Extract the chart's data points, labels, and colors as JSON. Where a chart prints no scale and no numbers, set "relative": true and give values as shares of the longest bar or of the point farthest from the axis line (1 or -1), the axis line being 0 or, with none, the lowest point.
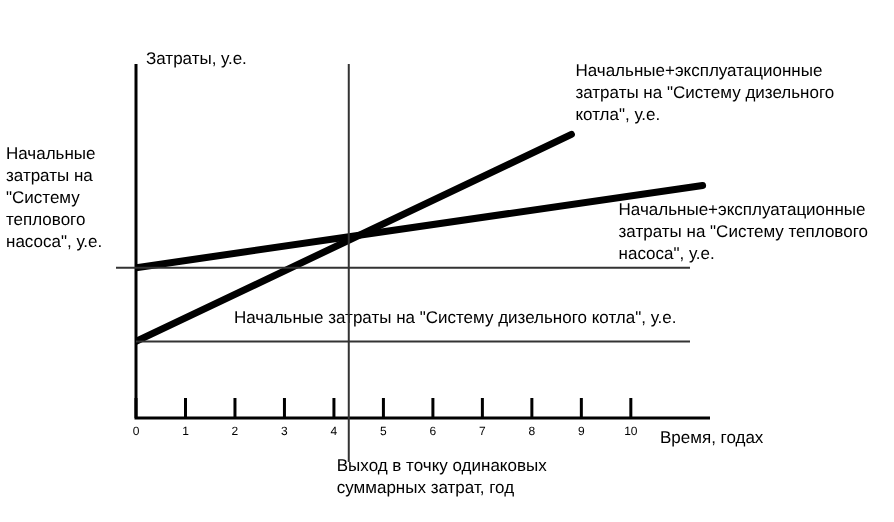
{
  "chart_data": {
    "type": "line",
    "relative": true,
    "xlabel": "Время, годах",
    "ylabel": "Затраты, у.е.",
    "xlim": [
      0,
      11.6
    ],
    "xticks": [
      0,
      1,
      2,
      3,
      4,
      5,
      6,
      7,
      8,
      9,
      10
    ],
    "grid": false,
    "legend": false,
    "marker": "none",
    "line_style": "solid",
    "series": [
      {
        "name": "Начальные+эксплуатационные затраты на \"Систему дизельного котла\", у.е.",
        "color": "#000000",
        "x": [
          0,
          8.8
        ],
        "values": [
          0.27,
          1
        ]
      },
      {
        "name": "Начальные+эксплуатационные затраты на \"Систему теплового насоса\", у.е.",
        "color": "#000000",
        "x": [
          0,
          11.45
        ],
        "values": [
          0.53,
          0.82
        ]
      }
    ],
    "ref_lines": [
      {
        "axis": "y",
        "value": 0.53,
        "label": "Начальные затраты на \"Систему теплового насоса\", у.е."
      },
      {
        "axis": "y",
        "value": 0.27,
        "label": "Начальные затраты на \"Систему дизельного котла\", у.е."
      },
      {
        "axis": "x",
        "value": 4.3,
        "label": "Выход в точку одинаковых суммарных затрат, год"
      }
    ]
  }
}
